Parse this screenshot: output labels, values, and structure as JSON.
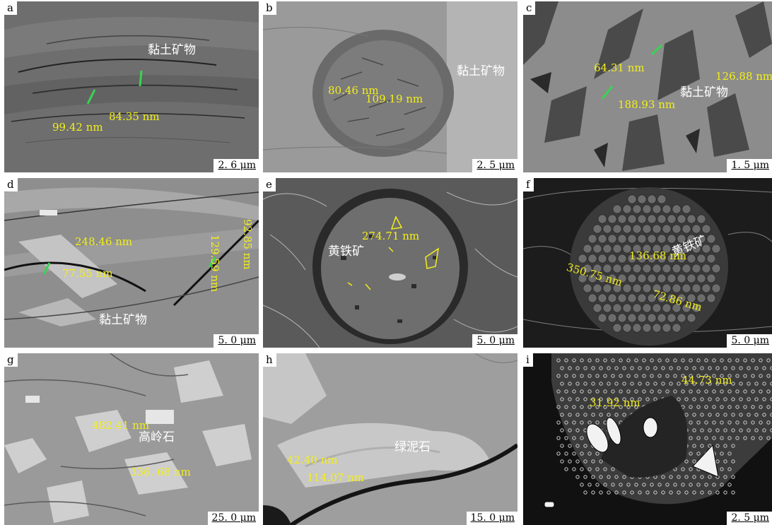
{
  "panels": {
    "a": {
      "label": "a",
      "scale": "2. 6 μm",
      "mineral": "黏土矿物",
      "m1": "99.42 nm",
      "m2": "84.35 nm"
    },
    "b": {
      "label": "b",
      "scale": "2. 5 μm",
      "mineral": "黏土矿物",
      "m1": "80.46 nm",
      "m2": "109.19 nm"
    },
    "c": {
      "label": "c",
      "scale": "1. 5 μm",
      "mineral": "黏土矿物",
      "m1": "64.31 nm",
      "m2": "188.93 nm",
      "m3": "126.88 nm"
    },
    "d": {
      "label": "d",
      "scale": "5. 0 μm",
      "mineral": "黏土矿物",
      "m1": "248.46 nm",
      "m2": "77.55 nm",
      "m3": "129.59 nm",
      "m4": "92.85 nm"
    },
    "e": {
      "label": "e",
      "scale": "5. 0 μm",
      "mineral": "黄铁矿",
      "m1": "274.71 nm"
    },
    "f": {
      "label": "f",
      "scale": "5. 0 μm",
      "mineral": "黄铁矿",
      "m1": "136.68 nm",
      "m2": "350.75 nm",
      "m3": "72.86 nm"
    },
    "g": {
      "label": "g",
      "scale": "25. 0 μm",
      "mineral": "高岭石",
      "m1": "482.41 nm",
      "m2": "336. 68 nm"
    },
    "h": {
      "label": "h",
      "scale": "15. 0 μm",
      "mineral": "绿泥石",
      "m1": "42.40 nm",
      "m2": "114.07 nm"
    },
    "i": {
      "label": "i",
      "scale": "2. 5 μm",
      "m1": "31.92 nm",
      "m2": "44.73 nm"
    }
  }
}
